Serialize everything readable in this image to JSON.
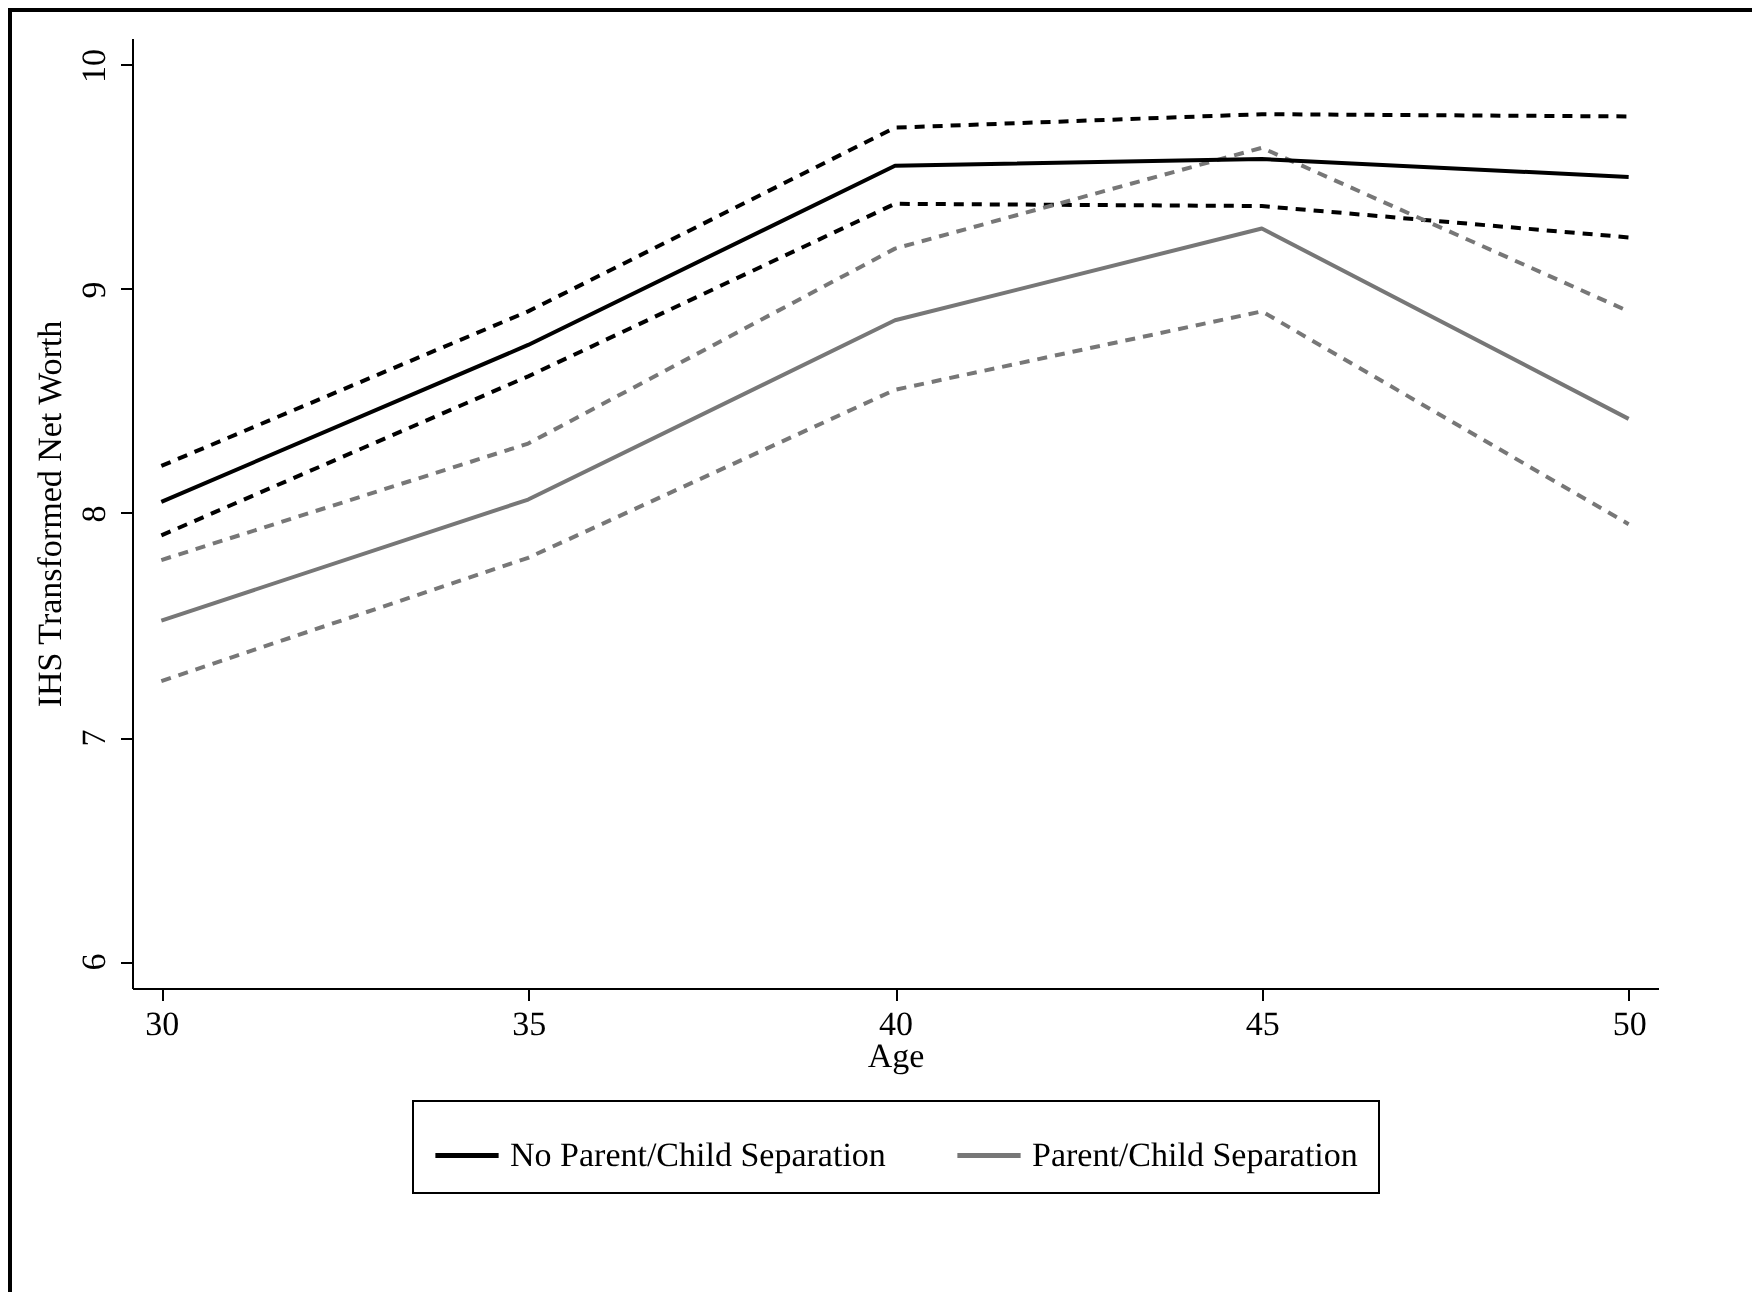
{
  "chart_data": {
    "type": "line",
    "xlabel": "Age",
    "ylabel": "IHS Transformed Net Worth",
    "x": [
      30,
      35,
      40,
      45,
      50
    ],
    "xlim": [
      29.6,
      50.4
    ],
    "xticks": [
      30,
      35,
      40,
      45,
      50
    ],
    "ylim": [
      5.88,
      10.12
    ],
    "yticks": [
      6,
      7,
      8,
      9,
      10
    ],
    "grid": false,
    "legend": "bottom",
    "marker": "none",
    "series": [
      {
        "name": "No Parent/Child Separation",
        "color": "#000000",
        "line_style": "solid",
        "values": [
          8.05,
          8.75,
          9.55,
          9.58,
          9.5
        ]
      },
      {
        "color": "#000000",
        "line_style": "dashed",
        "values": [
          8.21,
          8.9,
          9.72,
          9.78,
          9.77
        ]
      },
      {
        "color": "#000000",
        "line_style": "dashed",
        "values": [
          7.9,
          8.61,
          9.38,
          9.37,
          9.23
        ]
      },
      {
        "name": "Parent/Child Separation",
        "color": "#777777",
        "line_style": "solid",
        "values": [
          7.52,
          8.06,
          8.86,
          9.27,
          8.42
        ]
      },
      {
        "color": "#777777",
        "line_style": "dashed",
        "values": [
          7.79,
          8.31,
          9.18,
          9.63,
          8.9
        ]
      },
      {
        "color": "#777777",
        "line_style": "dashed",
        "values": [
          7.25,
          7.8,
          8.55,
          8.9,
          7.95
        ]
      }
    ]
  }
}
